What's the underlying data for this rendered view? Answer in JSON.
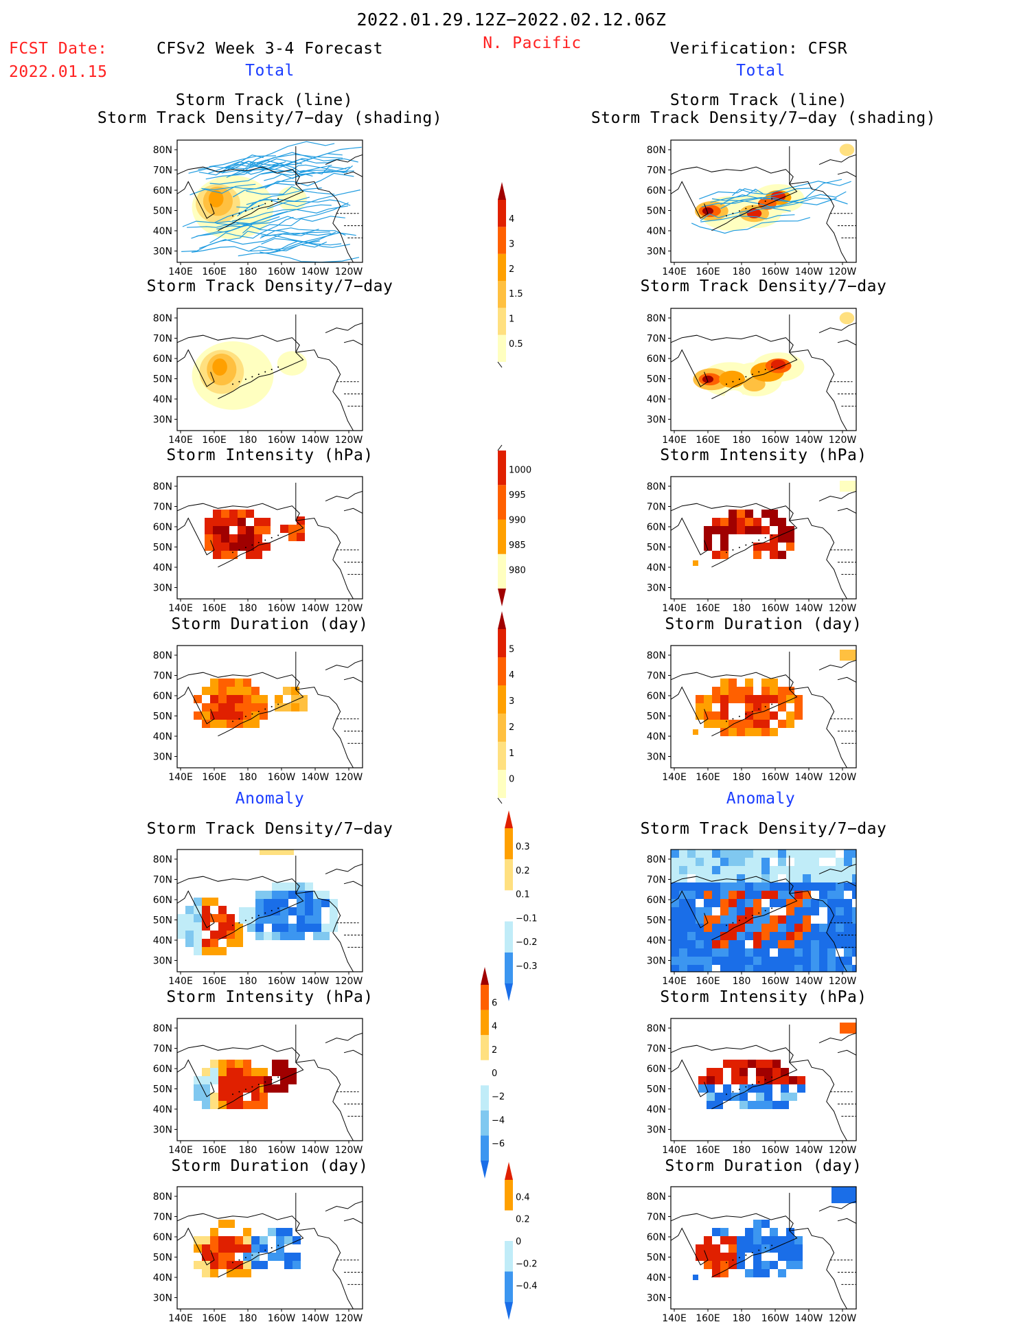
{
  "header": {
    "date_range": "2022.01.29.12Z−2022.02.12.06Z",
    "fcst_label": "FCST Date:",
    "fcst_date": "2022.01.15",
    "model_title": "CFSv2 Week 3-4 Forecast",
    "region": "N. Pacific",
    "verification_title": "Verification: CFSR",
    "total_left": "Total",
    "total_right": "Total",
    "anomaly_left": "Anomaly",
    "anomaly_right": "Anomaly"
  },
  "panel_titles": {
    "track_line": "Storm Track (line)",
    "track_shading": "Storm Track Density/7−day (shading)",
    "density": "Storm Track Density/7−day",
    "intensity": "Storm Intensity (hPa)",
    "duration": "Storm Duration (day)"
  },
  "axes": {
    "x_ticks": [
      "140E",
      "160E",
      "180",
      "160W",
      "140W",
      "120W"
    ],
    "y_ticks": [
      "80N",
      "70N",
      "60N",
      "50N",
      "40N",
      "30N"
    ]
  },
  "colors": {
    "total_scale": [
      "#ffffc0",
      "#ffe080",
      "#ffc040",
      "#ffa000",
      "#ff6000",
      "#e02000",
      "#a00000"
    ],
    "intensity_scale": [
      "#ffffc0",
      "#ffa000",
      "#ff6000",
      "#e02000",
      "#a00000"
    ],
    "anomaly_scale": [
      "#1a6ee8",
      "#3c96f0",
      "#80c8f0",
      "#c0ecf8",
      "#ffffff",
      "#ffe080",
      "#ffa000",
      "#ff6000",
      "#e02000",
      "#a00000"
    ],
    "track_line": "#1e9be0",
    "coast": "#000000"
  },
  "chart_data": [
    {
      "type": "heatmap",
      "id": "fcst-track",
      "side": "forecast",
      "row": 1,
      "variable": "storm track density with tracks",
      "colorbar": "density"
    },
    {
      "type": "heatmap",
      "id": "obs-track",
      "side": "verification",
      "row": 1,
      "variable": "storm track density with tracks",
      "colorbar": "density"
    },
    {
      "type": "heatmap",
      "id": "fcst-density",
      "side": "forecast",
      "row": 2,
      "variable": "storm track density",
      "colorbar": "density"
    },
    {
      "type": "heatmap",
      "id": "obs-density",
      "side": "verification",
      "row": 2,
      "variable": "storm track density",
      "colorbar": "density"
    },
    {
      "type": "heatmap",
      "id": "fcst-intensity",
      "side": "forecast",
      "row": 3,
      "variable": "storm intensity",
      "colorbar": "intensity"
    },
    {
      "type": "heatmap",
      "id": "obs-intensity",
      "side": "verification",
      "row": 3,
      "variable": "storm intensity",
      "colorbar": "intensity"
    },
    {
      "type": "heatmap",
      "id": "fcst-duration",
      "side": "forecast",
      "row": 4,
      "variable": "storm duration",
      "colorbar": "duration"
    },
    {
      "type": "heatmap",
      "id": "obs-duration",
      "side": "verification",
      "row": 4,
      "variable": "storm duration",
      "colorbar": "duration"
    },
    {
      "type": "heatmap",
      "id": "fcst-density-anom",
      "side": "forecast",
      "row": 5,
      "variable": "storm track density anomaly",
      "colorbar": "density_anom"
    },
    {
      "type": "heatmap",
      "id": "obs-density-anom",
      "side": "verification",
      "row": 5,
      "variable": "storm track density anomaly",
      "colorbar": "density_anom"
    },
    {
      "type": "heatmap",
      "id": "fcst-intensity-anom",
      "side": "forecast",
      "row": 6,
      "variable": "storm intensity anomaly",
      "colorbar": "intensity_anom"
    },
    {
      "type": "heatmap",
      "id": "obs-intensity-anom",
      "side": "verification",
      "row": 6,
      "variable": "storm intensity anomaly",
      "colorbar": "intensity_anom"
    },
    {
      "type": "heatmap",
      "id": "fcst-duration-anom",
      "side": "forecast",
      "row": 7,
      "variable": "storm duration anomaly",
      "colorbar": "duration_anom"
    },
    {
      "type": "heatmap",
      "id": "obs-duration-anom",
      "side": "verification",
      "row": 7,
      "variable": "storm duration anomaly",
      "colorbar": "duration_anom"
    }
  ],
  "colorbars": {
    "density": {
      "labels": [
        "4",
        "3",
        "2",
        "1.5",
        "1",
        "0.5"
      ]
    },
    "intensity": {
      "labels": [
        "1000",
        "995",
        "990",
        "985",
        "980"
      ]
    },
    "duration": {
      "labels": [
        "5",
        "4",
        "3",
        "2",
        "1",
        "0"
      ]
    },
    "density_anom": {
      "labels": [
        "0.3",
        "0.2",
        "0.1",
        "−0.1",
        "−0.2",
        "−0.3"
      ]
    },
    "intensity_anom": {
      "labels": [
        "6",
        "4",
        "2",
        "0",
        "−2",
        "−4",
        "−6"
      ]
    },
    "duration_anom": {
      "labels": [
        "0.4",
        "0.2",
        "0",
        "−0.2",
        "−0.4"
      ]
    }
  }
}
